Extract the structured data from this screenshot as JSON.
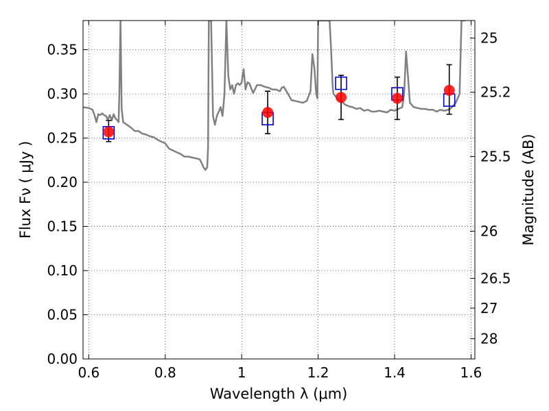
{
  "chart_data": {
    "type": "scatter",
    "xlabel": "Wavelength  λ (μm)",
    "ylabel": "Flux  Fν  ( μJy )",
    "ylabel_right": "Magnitude (AB)",
    "xlim": [
      0.585,
      1.61
    ],
    "ylim": [
      0.0,
      0.383
    ],
    "grid": true,
    "x_ticks": [
      {
        "value": 0.6,
        "label": "0.6"
      },
      {
        "value": 0.8,
        "label": "0.8"
      },
      {
        "value": 1.0,
        "label": "1"
      },
      {
        "value": 1.2,
        "label": "1.2"
      },
      {
        "value": 1.4,
        "label": "1.4"
      },
      {
        "value": 1.6,
        "label": "1.6"
      }
    ],
    "y_ticks": [
      {
        "value": 0.0,
        "label": "0.00"
      },
      {
        "value": 0.05,
        "label": "0.05"
      },
      {
        "value": 0.1,
        "label": "0.10"
      },
      {
        "value": 0.15,
        "label": "0.15"
      },
      {
        "value": 0.2,
        "label": "0.20"
      },
      {
        "value": 0.25,
        "label": "0.25"
      },
      {
        "value": 0.3,
        "label": "0.30"
      },
      {
        "value": 0.35,
        "label": "0.35"
      }
    ],
    "mag_ticks": [
      {
        "value": 0.3631,
        "label": "25"
      },
      {
        "value": 0.3019,
        "label": "25.2"
      },
      {
        "value": 0.2291,
        "label": "25.5"
      },
      {
        "value": 0.1446,
        "label": "26"
      },
      {
        "value": 0.0912,
        "label": "26.5"
      },
      {
        "value": 0.0575,
        "label": "27"
      },
      {
        "value": 0.0229,
        "label": "28"
      }
    ],
    "series": [
      {
        "kind": "template-spectrum",
        "color": "#808080",
        "x": [
          0.585,
          0.6,
          0.61,
          0.615,
          0.62,
          0.625,
          0.63,
          0.635,
          0.64,
          0.645,
          0.65,
          0.655,
          0.66,
          0.665,
          0.67,
          0.675,
          0.678,
          0.68,
          0.683,
          0.686,
          0.69,
          0.7,
          0.71,
          0.72,
          0.73,
          0.74,
          0.75,
          0.76,
          0.77,
          0.78,
          0.79,
          0.8,
          0.81,
          0.82,
          0.83,
          0.84,
          0.85,
          0.86,
          0.87,
          0.88,
          0.89,
          0.895,
          0.9,
          0.905,
          0.91,
          0.912,
          0.914,
          0.918,
          0.92,
          0.925,
          0.93,
          0.935,
          0.94,
          0.945,
          0.95,
          0.955,
          0.96,
          0.965,
          0.97,
          0.975,
          0.98,
          0.985,
          0.99,
          0.995,
          1.0,
          1.005,
          1.01,
          1.015,
          1.02,
          1.03,
          1.04,
          1.05,
          1.06,
          1.07,
          1.08,
          1.09,
          1.1,
          1.105,
          1.11,
          1.12,
          1.13,
          1.14,
          1.15,
          1.16,
          1.17,
          1.18,
          1.185,
          1.19,
          1.195,
          1.198,
          1.2,
          1.205,
          1.21,
          1.22,
          1.23,
          1.234,
          1.238,
          1.24,
          1.25,
          1.26,
          1.27,
          1.28,
          1.29,
          1.3,
          1.31,
          1.32,
          1.33,
          1.34,
          1.35,
          1.36,
          1.37,
          1.38,
          1.39,
          1.4,
          1.41,
          1.42,
          1.425,
          1.43,
          1.435,
          1.44,
          1.45,
          1.46,
          1.47,
          1.48,
          1.49,
          1.5,
          1.51,
          1.52,
          1.53,
          1.54,
          1.545,
          1.55,
          1.56,
          1.57,
          1.575,
          1.58,
          1.585
        ],
        "y": [
          0.285,
          0.284,
          0.282,
          0.276,
          0.268,
          0.277,
          0.276,
          0.278,
          0.276,
          0.275,
          0.271,
          0.276,
          0.27,
          0.277,
          0.272,
          0.27,
          0.268,
          0.3,
          0.383,
          0.283,
          0.268,
          0.265,
          0.262,
          0.258,
          0.258,
          0.255,
          0.254,
          0.252,
          0.251,
          0.248,
          0.246,
          0.244,
          0.238,
          0.236,
          0.234,
          0.232,
          0.229,
          0.229,
          0.228,
          0.227,
          0.226,
          0.222,
          0.217,
          0.214,
          0.217,
          0.24,
          0.383,
          0.383,
          0.383,
          0.275,
          0.265,
          0.275,
          0.28,
          0.285,
          0.275,
          0.3,
          0.383,
          0.32,
          0.305,
          0.31,
          0.3,
          0.31,
          0.312,
          0.31,
          0.313,
          0.328,
          0.305,
          0.313,
          0.312,
          0.301,
          0.31,
          0.31,
          0.308,
          0.307,
          0.305,
          0.305,
          0.303,
          0.307,
          0.308,
          0.301,
          0.293,
          0.292,
          0.291,
          0.29,
          0.292,
          0.303,
          0.345,
          0.33,
          0.3,
          0.295,
          0.383,
          0.383,
          0.383,
          0.383,
          0.383,
          0.35,
          0.308,
          0.3,
          0.295,
          0.292,
          0.288,
          0.286,
          0.285,
          0.283,
          0.284,
          0.281,
          0.282,
          0.28,
          0.28,
          0.281,
          0.28,
          0.279,
          0.282,
          0.281,
          0.283,
          0.285,
          0.3,
          0.348,
          0.32,
          0.29,
          0.285,
          0.284,
          0.283,
          0.283,
          0.282,
          0.282,
          0.28,
          0.282,
          0.281,
          0.282,
          0.283,
          0.285,
          0.29,
          0.3,
          0.383,
          0.383,
          0.383
        ]
      },
      {
        "kind": "model-photometry",
        "marker": "open-square",
        "color": "#0000cc",
        "x": [
          0.652,
          1.068,
          1.26,
          1.407,
          1.543
        ],
        "y": [
          0.256,
          0.272,
          0.312,
          0.3,
          0.293
        ]
      },
      {
        "kind": "observed",
        "marker": "filled-circle",
        "color": "#ff0000",
        "x": [
          0.652,
          1.068,
          1.26,
          1.407,
          1.543
        ],
        "y": [
          0.257,
          0.279,
          0.296,
          0.295,
          0.304
        ],
        "yerr_low": [
          0.011,
          0.024,
          0.025,
          0.024,
          0.027
        ],
        "yerr_high": [
          0.013,
          0.024,
          0.025,
          0.024,
          0.029
        ]
      }
    ]
  }
}
